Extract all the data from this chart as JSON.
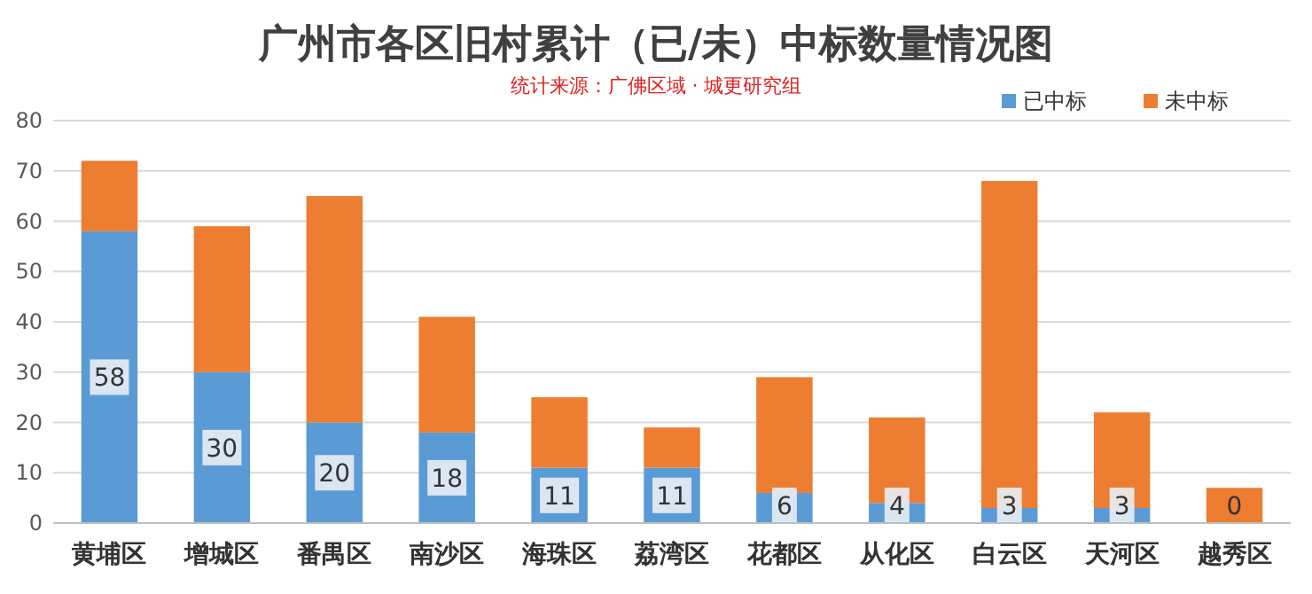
{
  "chart_data": {
    "type": "bar",
    "stacked": true,
    "title": "广州市各区旧村累计（已/未）中标数量情况图",
    "subtitle": "统计来源：广佛区域 · 城更研究组",
    "categories": [
      "黄埔区",
      "增城区",
      "番禺区",
      "南沙区",
      "海珠区",
      "荔湾区",
      "花都区",
      "从化区",
      "白云区",
      "天河区",
      "越秀区"
    ],
    "series": [
      {
        "name": "已中标",
        "color": "#5b9bd5",
        "values": [
          58,
          30,
          20,
          18,
          11,
          11,
          6,
          4,
          3,
          3,
          0
        ],
        "value_labels": [
          "58",
          "30",
          "20",
          "18",
          "11",
          "11",
          "6",
          "4",
          "3",
          "3",
          "0"
        ]
      },
      {
        "name": "未中标",
        "color": "#ed7d31",
        "values": [
          14,
          29,
          45,
          23,
          14,
          8,
          23,
          17,
          65,
          19,
          7
        ]
      }
    ],
    "ylim": [
      0,
      80
    ],
    "yticks": [
      0,
      10,
      20,
      30,
      40,
      50,
      60,
      70,
      80
    ],
    "grid": "y",
    "legend": "top right"
  }
}
